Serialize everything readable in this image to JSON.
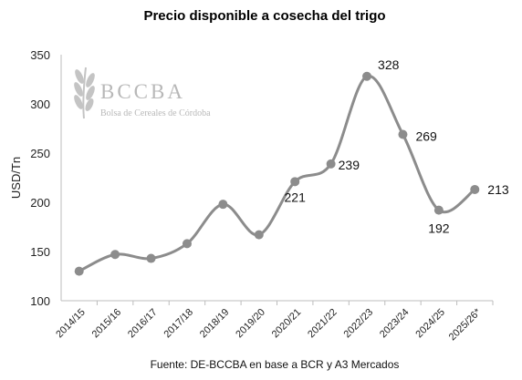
{
  "chart_data": {
    "type": "line",
    "title": "Precio disponible a cosecha del trigo",
    "ylabel": "USD/Tn",
    "xlabel": "",
    "ylim": [
      100,
      350
    ],
    "yticks": [
      "100",
      "150",
      "200",
      "250",
      "300",
      "350"
    ],
    "categories": [
      "2014/15",
      "2015/16",
      "2016/17",
      "2017/18",
      "2018/19",
      "2019/20",
      "2020/21",
      "2021/22",
      "2022/23",
      "2023/24",
      "2024/25",
      "2025/26*"
    ],
    "values": [
      130,
      147,
      143,
      158,
      198,
      167,
      221,
      239,
      328,
      269,
      192,
      213
    ],
    "data_labels": {
      "6": "221",
      "7": "239",
      "8": "328",
      "9": "269",
      "10": "192",
      "11": "213"
    },
    "line_color": "#8c8c8c",
    "grid": false,
    "source": "Fuente: DE-BCCBA en base a BCR y A3 Mercados"
  },
  "watermark": {
    "name": "BCCBA",
    "subtitle": "Bolsa de Cereales de Córdoba",
    "icon": "wheat-icon",
    "color": "#b8b8b8"
  }
}
